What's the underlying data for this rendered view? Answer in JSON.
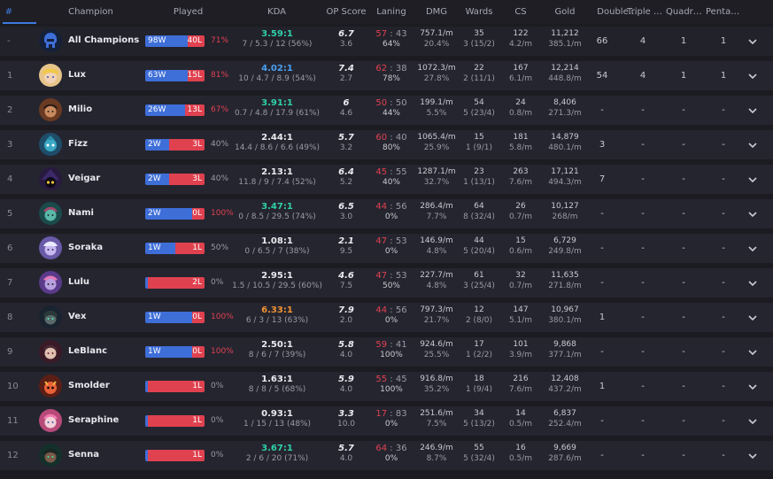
{
  "columns": {
    "num": "#",
    "champion": "Champion",
    "played": "Played",
    "kda": "KDA",
    "op_score": "OP Score",
    "laning": "Laning",
    "dmg": "DMG",
    "wards": "Wards",
    "cs": "CS",
    "gold": "Gold",
    "double": "Double…",
    "triple": "Triple …",
    "quadra": "Quadra…",
    "penta": "Penta …"
  },
  "colors": {
    "win_bar": "#3e6ed8",
    "loss_bar": "#e0414f",
    "accent": "#3d7be0"
  },
  "rows": [
    {
      "num": "-",
      "name": "All Champions",
      "icon": "all-champions-icon",
      "wins": "98W",
      "losses": "40L",
      "win_frac": 0.71,
      "winrate": "71%",
      "winrate_color": "red",
      "kda": "3.59:1",
      "kda_color": "green",
      "kda_detail": "7 / 5.3 / 12 (56%)",
      "op": "6.7",
      "op_rank": "3.6",
      "lan_w": "57",
      "lan_l": "43",
      "lan_pct": "64%",
      "dmg": "757.1/m",
      "dmg_pct": "20.4%",
      "wards": "35",
      "wards_detail": "3 (15/2)",
      "cs": "122",
      "cs_pm": "4.2/m",
      "gold": "11,212",
      "gold_pm": "385.1/m",
      "double": "66",
      "triple": "4",
      "quadra": "1",
      "penta": "1"
    },
    {
      "num": "1",
      "name": "Lux",
      "icon": "lux-icon",
      "wins": "63W",
      "losses": "15L",
      "win_frac": 0.81,
      "winrate": "81%",
      "winrate_color": "red",
      "kda": "4.02:1",
      "kda_color": "blue",
      "kda_detail": "10 / 4.7 / 8.9 (54%)",
      "op": "7.4",
      "op_rank": "2.7",
      "lan_w": "62",
      "lan_l": "38",
      "lan_pct": "78%",
      "dmg": "1072.3/m",
      "dmg_pct": "27.8%",
      "wards": "22",
      "wards_detail": "2 (11/1)",
      "cs": "167",
      "cs_pm": "6.1/m",
      "gold": "12,214",
      "gold_pm": "448.8/m",
      "double": "54",
      "triple": "4",
      "quadra": "1",
      "penta": "1"
    },
    {
      "num": "2",
      "name": "Milio",
      "icon": "milio-icon",
      "wins": "26W",
      "losses": "13L",
      "win_frac": 0.67,
      "winrate": "67%",
      "winrate_color": "red",
      "kda": "3.91:1",
      "kda_color": "green",
      "kda_detail": "0.7 / 4.8 / 17.9 (61%)",
      "op": "6",
      "op_rank": "4.6",
      "lan_w": "50",
      "lan_l": "50",
      "lan_pct": "44%",
      "dmg": "199.1/m",
      "dmg_pct": "5.5%",
      "wards": "54",
      "wards_detail": "5 (23/4)",
      "cs": "24",
      "cs_pm": "0.8/m",
      "gold": "8,406",
      "gold_pm": "271.3/m",
      "double": "-",
      "triple": "-",
      "quadra": "-",
      "penta": "-"
    },
    {
      "num": "3",
      "name": "Fizz",
      "icon": "fizz-icon",
      "wins": "2W",
      "losses": "3L",
      "win_frac": 0.4,
      "winrate": "40%",
      "winrate_color": "gray",
      "kda": "2.44:1",
      "kda_color": "white",
      "kda_detail": "14.4 / 8.6 / 6.6 (49%)",
      "op": "5.7",
      "op_rank": "3.2",
      "lan_w": "60",
      "lan_l": "40",
      "lan_pct": "80%",
      "dmg": "1065.4/m",
      "dmg_pct": "25.9%",
      "wards": "15",
      "wards_detail": "1 (9/1)",
      "cs": "181",
      "cs_pm": "5.8/m",
      "gold": "14,879",
      "gold_pm": "480.1/m",
      "double": "3",
      "triple": "-",
      "quadra": "-",
      "penta": "-"
    },
    {
      "num": "4",
      "name": "Veigar",
      "icon": "veigar-icon",
      "wins": "2W",
      "losses": "3L",
      "win_frac": 0.4,
      "winrate": "40%",
      "winrate_color": "gray",
      "kda": "2.13:1",
      "kda_color": "white",
      "kda_detail": "11.8 / 9 / 7.4 (52%)",
      "op": "6.4",
      "op_rank": "5.2",
      "lan_w": "45",
      "lan_l": "55",
      "lan_pct": "40%",
      "dmg": "1287.1/m",
      "dmg_pct": "32.7%",
      "wards": "23",
      "wards_detail": "1 (13/1)",
      "cs": "263",
      "cs_pm": "7.6/m",
      "gold": "17,121",
      "gold_pm": "494.3/m",
      "double": "7",
      "triple": "-",
      "quadra": "-",
      "penta": "-"
    },
    {
      "num": "5",
      "name": "Nami",
      "icon": "nami-icon",
      "wins": "2W",
      "losses": "0L",
      "win_frac": 1.0,
      "winrate": "100%",
      "winrate_color": "red",
      "kda": "3.47:1",
      "kda_color": "green",
      "kda_detail": "0 / 8.5 / 29.5 (74%)",
      "op": "6.5",
      "op_rank": "3.0",
      "lan_w": "44",
      "lan_l": "56",
      "lan_pct": "0%",
      "dmg": "286.4/m",
      "dmg_pct": "7.7%",
      "wards": "64",
      "wards_detail": "8 (32/4)",
      "cs": "26",
      "cs_pm": "0.7/m",
      "gold": "10,127",
      "gold_pm": "268/m",
      "double": "-",
      "triple": "-",
      "quadra": "-",
      "penta": "-"
    },
    {
      "num": "6",
      "name": "Soraka",
      "icon": "soraka-icon",
      "wins": "1W",
      "losses": "1L",
      "win_frac": 0.5,
      "winrate": "50%",
      "winrate_color": "gray",
      "kda": "1.08:1",
      "kda_color": "white",
      "kda_detail": "0 / 6.5 / 7 (38%)",
      "op": "2.1",
      "op_rank": "9.5",
      "lan_w": "47",
      "lan_l": "53",
      "lan_pct": "0%",
      "dmg": "146.9/m",
      "dmg_pct": "4.8%",
      "wards": "44",
      "wards_detail": "5 (20/4)",
      "cs": "15",
      "cs_pm": "0.6/m",
      "gold": "6,729",
      "gold_pm": "249.8/m",
      "double": "-",
      "triple": "-",
      "quadra": "-",
      "penta": "-"
    },
    {
      "num": "7",
      "name": "Lulu",
      "icon": "lulu-icon",
      "wins": "0W",
      "losses": "2L",
      "win_frac": 0.0,
      "winrate": "0%",
      "winrate_color": "gray",
      "kda": "2.95:1",
      "kda_color": "white",
      "kda_detail": "1.5 / 10.5 / 29.5 (60%)",
      "op": "4.6",
      "op_rank": "7.5",
      "lan_w": "47",
      "lan_l": "53",
      "lan_pct": "50%",
      "dmg": "227.7/m",
      "dmg_pct": "4.8%",
      "wards": "61",
      "wards_detail": "3 (25/4)",
      "cs": "32",
      "cs_pm": "0.7/m",
      "gold": "11,635",
      "gold_pm": "271.8/m",
      "double": "-",
      "triple": "-",
      "quadra": "-",
      "penta": "-"
    },
    {
      "num": "8",
      "name": "Vex",
      "icon": "vex-icon",
      "wins": "1W",
      "losses": "0L",
      "win_frac": 1.0,
      "winrate": "100%",
      "winrate_color": "red",
      "kda": "6.33:1",
      "kda_color": "orange",
      "kda_detail": "6 / 3 / 13 (63%)",
      "op": "7.9",
      "op_rank": "2.0",
      "lan_w": "44",
      "lan_l": "56",
      "lan_pct": "0%",
      "dmg": "797.3/m",
      "dmg_pct": "21.7%",
      "wards": "12",
      "wards_detail": "2 (8/0)",
      "cs": "147",
      "cs_pm": "5.1/m",
      "gold": "10,967",
      "gold_pm": "380.1/m",
      "double": "1",
      "triple": "-",
      "quadra": "-",
      "penta": "-"
    },
    {
      "num": "9",
      "name": "LeBlanc",
      "icon": "leblanc-icon",
      "wins": "1W",
      "losses": "0L",
      "win_frac": 1.0,
      "winrate": "100%",
      "winrate_color": "red",
      "kda": "2.50:1",
      "kda_color": "white",
      "kda_detail": "8 / 6 / 7 (39%)",
      "op": "5.8",
      "op_rank": "4.0",
      "lan_w": "59",
      "lan_l": "41",
      "lan_pct": "100%",
      "dmg": "924.6/m",
      "dmg_pct": "25.5%",
      "wards": "17",
      "wards_detail": "1 (2/2)",
      "cs": "101",
      "cs_pm": "3.9/m",
      "gold": "9,868",
      "gold_pm": "377.1/m",
      "double": "-",
      "triple": "-",
      "quadra": "-",
      "penta": "-"
    },
    {
      "num": "10",
      "name": "Smolder",
      "icon": "smolder-icon",
      "wins": "0W",
      "losses": "1L",
      "win_frac": 0.0,
      "winrate": "0%",
      "winrate_color": "gray",
      "kda": "1.63:1",
      "kda_color": "white",
      "kda_detail": "8 / 8 / 5 (68%)",
      "op": "5.9",
      "op_rank": "4.0",
      "lan_w": "55",
      "lan_l": "45",
      "lan_pct": "100%",
      "dmg": "916.8/m",
      "dmg_pct": "35.2%",
      "wards": "18",
      "wards_detail": "1 (9/4)",
      "cs": "216",
      "cs_pm": "7.6/m",
      "gold": "12,408",
      "gold_pm": "437.2/m",
      "double": "1",
      "triple": "-",
      "quadra": "-",
      "penta": "-"
    },
    {
      "num": "11",
      "name": "Seraphine",
      "icon": "seraphine-icon",
      "wins": "0W",
      "losses": "1L",
      "win_frac": 0.0,
      "winrate": "0%",
      "winrate_color": "gray",
      "kda": "0.93:1",
      "kda_color": "white",
      "kda_detail": "1 / 15 / 13 (48%)",
      "op": "3.3",
      "op_rank": "10.0",
      "lan_w": "17",
      "lan_l": "83",
      "lan_pct": "0%",
      "dmg": "251.6/m",
      "dmg_pct": "7.5%",
      "wards": "34",
      "wards_detail": "5 (13/2)",
      "cs": "14",
      "cs_pm": "0.5/m",
      "gold": "6,837",
      "gold_pm": "252.4/m",
      "double": "-",
      "triple": "-",
      "quadra": "-",
      "penta": "-"
    },
    {
      "num": "12",
      "name": "Senna",
      "icon": "senna-icon",
      "wins": "0W",
      "losses": "1L",
      "win_frac": 0.0,
      "winrate": "0%",
      "winrate_color": "gray",
      "kda": "3.67:1",
      "kda_color": "green",
      "kda_detail": "2 / 6 / 20 (71%)",
      "op": "5.7",
      "op_rank": "4.0",
      "lan_w": "64",
      "lan_l": "36",
      "lan_pct": "0%",
      "dmg": "246.9/m",
      "dmg_pct": "8.7%",
      "wards": "55",
      "wards_detail": "5 (32/4)",
      "cs": "16",
      "cs_pm": "0.5/m",
      "gold": "9,669",
      "gold_pm": "287.6/m",
      "double": "-",
      "triple": "-",
      "quadra": "-",
      "penta": "-"
    }
  ]
}
